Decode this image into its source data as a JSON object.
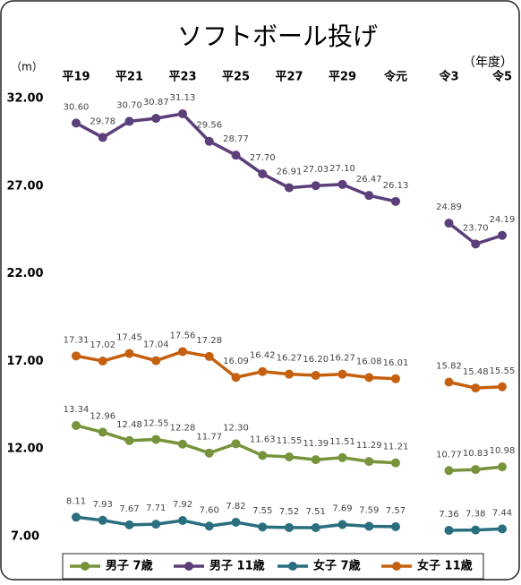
{
  "chart_data": {
    "type": "line",
    "title": "ソフトボール投げ",
    "y_label": "（m）",
    "x_label": "（年度）",
    "categories": [
      "平19",
      null,
      "平21",
      null,
      "平23",
      null,
      "平25",
      null,
      "平27",
      null,
      "平29",
      null,
      "令元",
      null,
      "令3",
      null,
      "令5"
    ],
    "series": [
      {
        "name": "男子 7歳",
        "color": "#77933c",
        "values": [
          13.34,
          12.96,
          12.48,
          12.55,
          12.28,
          11.77,
          12.3,
          11.63,
          11.55,
          11.39,
          11.51,
          11.29,
          11.21,
          null,
          10.77,
          10.83,
          10.98
        ],
        "value_labels": [
          "13.34",
          "12.96",
          "12.48",
          "12.55",
          "12.28",
          "11.77",
          "12.30",
          "11.63",
          "11.55",
          "11.39",
          "11.51",
          "11.29",
          "11.21",
          null,
          "10.77",
          "10.83",
          "10.98"
        ]
      },
      {
        "name": "男子 11歳",
        "color": "#5b3f7a",
        "values": [
          30.6,
          29.78,
          30.7,
          30.87,
          31.13,
          29.56,
          28.77,
          27.7,
          26.91,
          27.03,
          27.1,
          26.47,
          26.13,
          null,
          24.89,
          23.7,
          24.19
        ],
        "value_labels": [
          "30.60",
          "29.78",
          "30.70",
          "30.87",
          "31.13",
          "29.56",
          "28.77",
          "27.70",
          "26.91",
          "27.03",
          "27.10",
          "26.47",
          "26.13",
          null,
          "24.89",
          "23.70",
          "24.19"
        ]
      },
      {
        "name": "女子 7歳",
        "color": "#2a6f7f",
        "values": [
          8.11,
          7.93,
          7.67,
          7.71,
          7.92,
          7.6,
          7.82,
          7.55,
          7.52,
          7.51,
          7.69,
          7.59,
          7.57,
          null,
          7.36,
          7.38,
          7.44
        ],
        "value_labels": [
          "8.11",
          "7.93",
          "7.67",
          "7.71",
          "7.92",
          "7.60",
          "7.82",
          "7.55",
          "7.52",
          "7.51",
          "7.69",
          "7.59",
          "7.57",
          null,
          "7.36",
          "7.38",
          "7.44"
        ]
      },
      {
        "name": "女子 11歳",
        "color": "#c5600f",
        "values": [
          17.31,
          17.02,
          17.45,
          17.04,
          17.56,
          17.28,
          16.09,
          16.42,
          16.27,
          16.2,
          16.27,
          16.08,
          16.01,
          null,
          15.82,
          15.48,
          15.55
        ],
        "value_labels": [
          "17.31",
          "17.02",
          "17.45",
          "17.04",
          "17.56",
          "17.28",
          "16.09",
          "16.42",
          "16.27",
          "16.20",
          "16.27",
          "16.08",
          "16.01",
          null,
          "15.82",
          "15.48",
          "15.55"
        ]
      }
    ],
    "ylim": [
      7,
      32
    ],
    "yticks": [
      {
        "value": 7,
        "label": "7.00"
      },
      {
        "value": 12,
        "label": "12.00"
      },
      {
        "value": 17,
        "label": "17.00"
      },
      {
        "value": 22,
        "label": "22.00"
      },
      {
        "value": 27,
        "label": "27.00"
      },
      {
        "value": 32,
        "label": "32.00"
      }
    ],
    "grid": false,
    "legend": "bottom"
  }
}
